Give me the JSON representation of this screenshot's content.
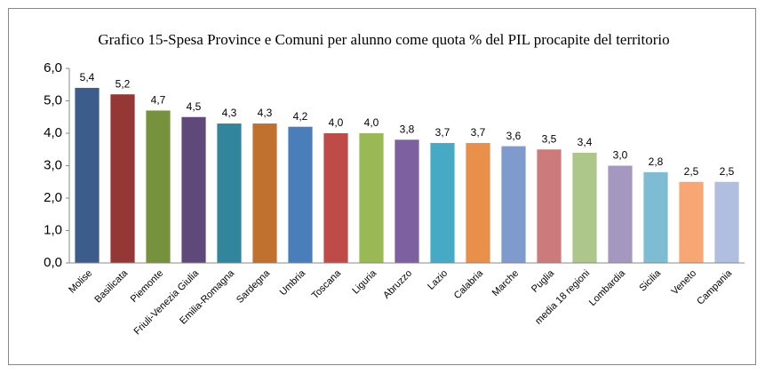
{
  "chart_data": {
    "type": "bar",
    "title": "Grafico 15-Spesa Province e Comuni per alunno come quota % del PIL procapite del territorio",
    "categories": [
      "Molise",
      "Basilicata",
      "Piemonte",
      "Friuli-Venezia Giulia",
      "Emilia-Romagna",
      "Sardegna",
      "Umbria",
      "Toscana",
      "Liguria",
      "Abruzzo",
      "Lazio",
      "Calabria",
      "Marche",
      "Puglia",
      "media 18 regioni",
      "Lombardia",
      "Sicilia",
      "Veneto",
      "Campania"
    ],
    "values": [
      5.4,
      5.2,
      4.7,
      4.5,
      4.3,
      4.3,
      4.2,
      4.0,
      4.0,
      3.8,
      3.7,
      3.7,
      3.6,
      3.5,
      3.4,
      3.0,
      2.8,
      2.5,
      2.5
    ],
    "value_labels": [
      "5,4",
      "5,2",
      "4,7",
      "4,5",
      "4,3",
      "4,3",
      "4,2",
      "4,0",
      "4,0",
      "3,8",
      "3,7",
      "3,7",
      "3,6",
      "3,5",
      "3,4",
      "3,0",
      "2,8",
      "2,5",
      "2,5"
    ],
    "colors": [
      "#3c5c8c",
      "#953735",
      "#76923c",
      "#5f497a",
      "#31859c",
      "#c0712e",
      "#4a7ebb",
      "#be4b48",
      "#98b954",
      "#7d60a0",
      "#46aac5",
      "#e8904a",
      "#7f9acd",
      "#cd7b7a",
      "#adc68a",
      "#a598c0",
      "#7dbcd3",
      "#f8a774",
      "#b0bedf"
    ],
    "ylim": [
      0,
      6
    ],
    "yticks": [
      {
        "value": 0,
        "label": "0,0"
      },
      {
        "value": 1,
        "label": "1,0"
      },
      {
        "value": 2,
        "label": "2,0"
      },
      {
        "value": 3,
        "label": "3,0"
      },
      {
        "value": 4,
        "label": "4,0"
      },
      {
        "value": 5,
        "label": "5,0"
      },
      {
        "value": 6,
        "label": "6,0"
      }
    ],
    "grid": false
  }
}
